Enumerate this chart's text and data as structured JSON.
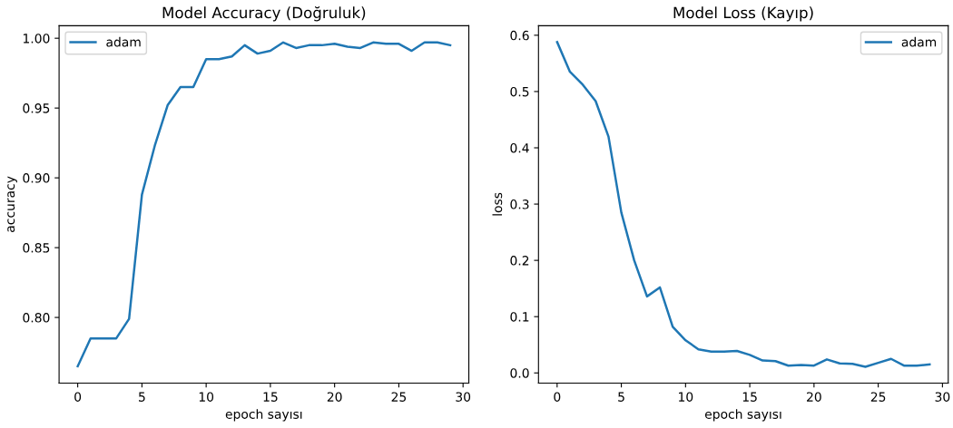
{
  "chart_data": [
    {
      "type": "line",
      "title": "Model Accuracy (Doğruluk)",
      "xlabel": "epoch sayısı",
      "ylabel": "accuracy",
      "x": [
        0,
        1,
        2,
        3,
        4,
        5,
        6,
        7,
        8,
        9,
        10,
        11,
        12,
        13,
        14,
        15,
        16,
        17,
        18,
        19,
        20,
        21,
        22,
        23,
        24,
        25,
        26,
        27,
        28,
        29
      ],
      "series": [
        {
          "name": "adam",
          "color": "#1f77b4",
          "values": [
            0.765,
            0.785,
            0.785,
            0.785,
            0.799,
            0.888,
            0.923,
            0.952,
            0.965,
            0.965,
            0.985,
            0.985,
            0.987,
            0.995,
            0.989,
            0.991,
            0.997,
            0.993,
            0.995,
            0.995,
            0.996,
            0.994,
            0.993,
            0.997,
            0.996,
            0.996,
            0.991,
            0.997,
            0.997,
            0.995
          ]
        }
      ],
      "xlim": [
        -1.45,
        30.45
      ],
      "xticks": [
        0,
        5,
        10,
        15,
        20,
        25,
        30
      ],
      "ylim": [
        0.753,
        1.009
      ],
      "yticks": [
        {
          "value": 0.8,
          "label": "0.80"
        },
        {
          "value": 0.85,
          "label": "0.85"
        },
        {
          "value": 0.9,
          "label": "0.90"
        },
        {
          "value": 0.95,
          "label": "0.95"
        },
        {
          "value": 1.0,
          "label": "1.00"
        }
      ],
      "legend": "upper left",
      "grid": false
    },
    {
      "type": "line",
      "title": "Model Loss (Kayıp)",
      "xlabel": "epoch sayısı",
      "ylabel": "loss",
      "x": [
        0,
        1,
        2,
        3,
        4,
        5,
        6,
        7,
        8,
        9,
        10,
        11,
        12,
        13,
        14,
        15,
        16,
        17,
        18,
        19,
        20,
        21,
        22,
        23,
        24,
        25,
        26,
        27,
        28,
        29
      ],
      "series": [
        {
          "name": "adam",
          "color": "#1f77b4",
          "values": [
            0.588,
            0.535,
            0.512,
            0.483,
            0.42,
            0.285,
            0.2,
            0.136,
            0.152,
            0.082,
            0.058,
            0.042,
            0.038,
            0.038,
            0.039,
            0.032,
            0.022,
            0.021,
            0.013,
            0.014,
            0.013,
            0.024,
            0.017,
            0.016,
            0.011,
            0.018,
            0.025,
            0.013,
            0.013,
            0.015
          ]
        }
      ],
      "xlim": [
        -1.45,
        30.45
      ],
      "xticks": [
        0,
        5,
        10,
        15,
        20,
        25,
        30
      ],
      "ylim": [
        -0.018,
        0.617
      ],
      "yticks": [
        {
          "value": 0,
          "label": "0.0"
        },
        {
          "value": 0.1,
          "label": "0.1"
        },
        {
          "value": 0.2,
          "label": "0.2"
        },
        {
          "value": 0.3,
          "label": "0.3"
        },
        {
          "value": 0.4,
          "label": "0.4"
        },
        {
          "value": 0.5,
          "label": "0.5"
        },
        {
          "value": 0.6,
          "label": "0.6"
        }
      ],
      "legend": "upper right",
      "grid": false
    }
  ]
}
